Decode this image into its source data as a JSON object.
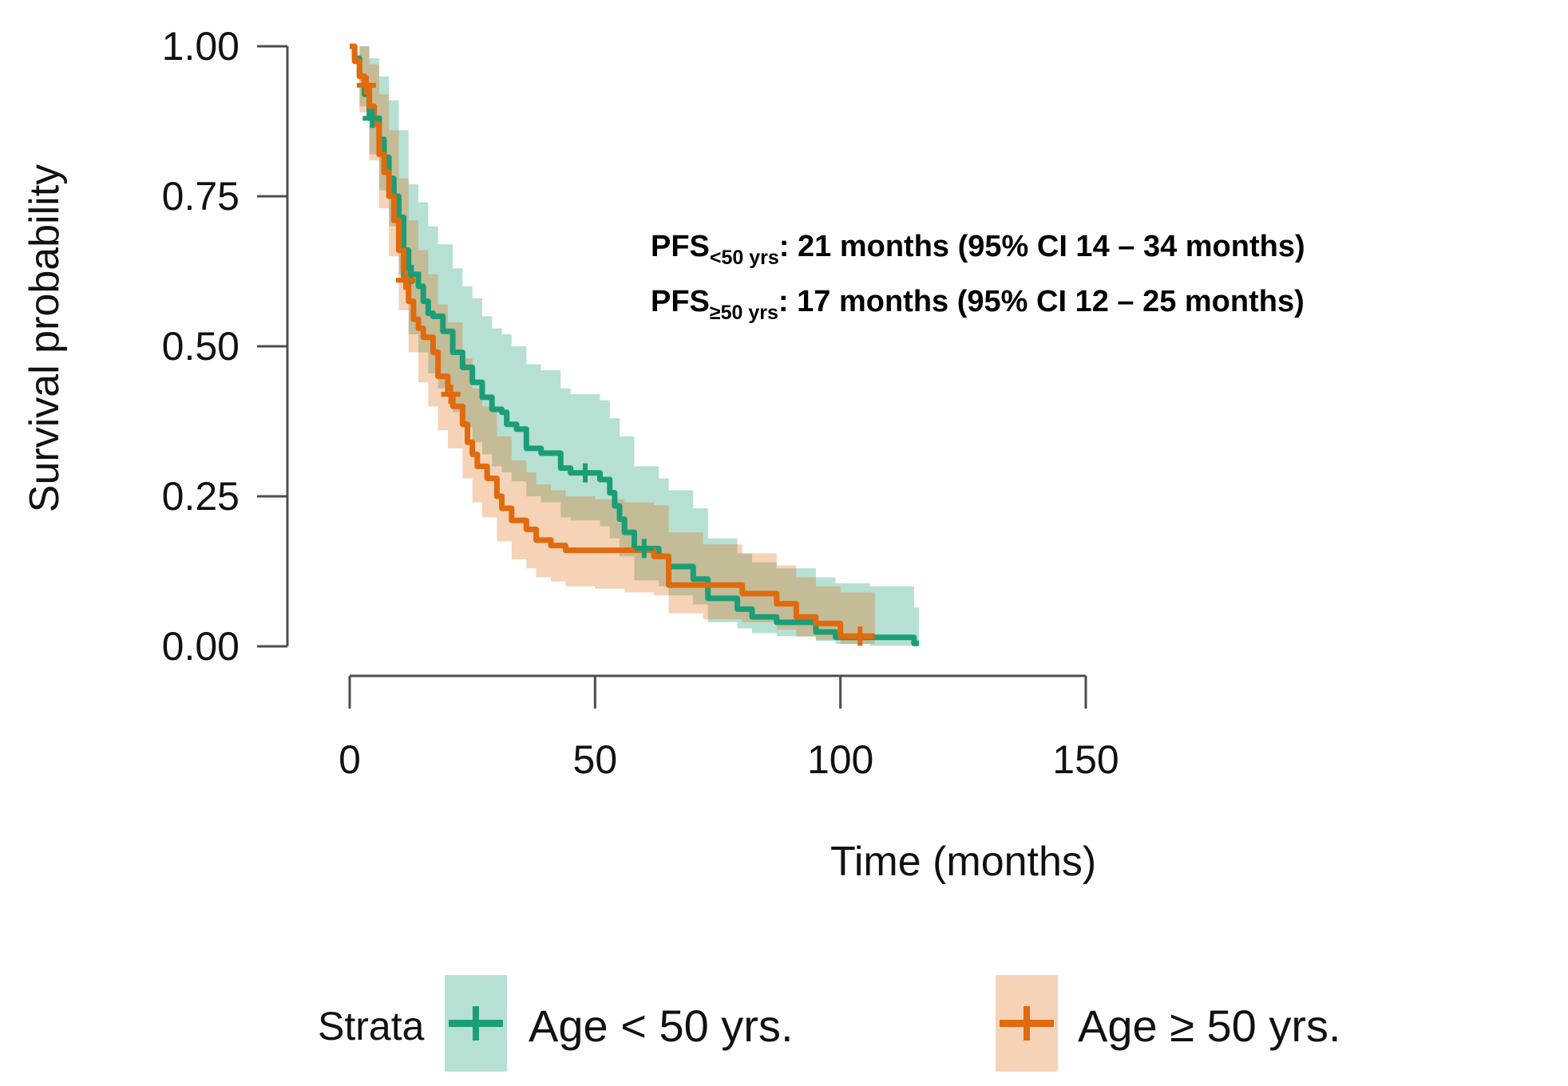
{
  "figure": {
    "background": "#ffffff",
    "axis_color": "#4d4d4d",
    "text_color": "#111111"
  },
  "chart_data": {
    "type": "line",
    "subtype": "kaplan-meier-step",
    "title": "",
    "xlabel": "Time (months)",
    "ylabel": "Survival probability",
    "xlim": [
      0,
      150
    ],
    "ylim": [
      0,
      1
    ],
    "grid": false,
    "legend_position": "bottom",
    "x_axis": {
      "label": "Time (months)",
      "ticks": [
        {
          "label": "0",
          "value": 0
        },
        {
          "label": "50",
          "value": 50
        },
        {
          "label": "100",
          "value": 100
        },
        {
          "label": "150",
          "value": 150
        }
      ]
    },
    "y_axis": {
      "label": "Survival probability",
      "ticks": [
        {
          "label": "1.00",
          "value": 1.0
        },
        {
          "label": "0.75",
          "value": 0.75
        },
        {
          "label": "0.50",
          "value": 0.5
        },
        {
          "label": "0.25",
          "value": 0.25
        },
        {
          "label": "0.00",
          "value": 0.0
        }
      ]
    },
    "annotation": {
      "lines": [
        {
          "prefix": "PFS",
          "sub": "<50 yrs",
          "rest": ": 21 months (95% CI 14 – 34 months)"
        },
        {
          "prefix": "PFS",
          "sub": "≥50 yrs",
          "rest": ": 17 months (95% CI 12 – 25 months)"
        }
      ]
    },
    "legend": {
      "title": "Strata",
      "entries": [
        {
          "label": "Age < 50 yrs."
        },
        {
          "label": "Age ≥ 50 yrs."
        }
      ]
    },
    "series": [
      {
        "name": "Age < 50 yrs.",
        "color": "#1b9e77",
        "band_color": "rgba(27,158,119,0.32)",
        "median_months": 21,
        "ci95_months": [
          14,
          34
        ],
        "start": [
          0,
          1.0
        ],
        "end_time": 116,
        "drops": [
          [
            1,
            0.98
          ],
          [
            2,
            0.95
          ],
          [
            3,
            0.92
          ],
          [
            4,
            0.88
          ],
          [
            6,
            0.845
          ],
          [
            7,
            0.815
          ],
          [
            8,
            0.78
          ],
          [
            9,
            0.75
          ],
          [
            10,
            0.715
          ],
          [
            11,
            0.66
          ],
          [
            12,
            0.62
          ],
          [
            14,
            0.6
          ],
          [
            15,
            0.575
          ],
          [
            16,
            0.555
          ],
          [
            17,
            0.55
          ],
          [
            19,
            0.525
          ],
          [
            21,
            0.49
          ],
          [
            23,
            0.465
          ],
          [
            25,
            0.44
          ],
          [
            27,
            0.415
          ],
          [
            29,
            0.395
          ],
          [
            31,
            0.39
          ],
          [
            32,
            0.37
          ],
          [
            34,
            0.362
          ],
          [
            36,
            0.33
          ],
          [
            39,
            0.322
          ],
          [
            43,
            0.297
          ],
          [
            45,
            0.289
          ],
          [
            51,
            0.278
          ],
          [
            53,
            0.256
          ],
          [
            54,
            0.234
          ],
          [
            55,
            0.212
          ],
          [
            56,
            0.19
          ],
          [
            58,
            0.163
          ],
          [
            63,
            0.15
          ],
          [
            65,
            0.133
          ],
          [
            70,
            0.112
          ],
          [
            73,
            0.08
          ],
          [
            79,
            0.062
          ],
          [
            82,
            0.049
          ],
          [
            87,
            0.04
          ],
          [
            95,
            0.024
          ],
          [
            99,
            0.015
          ],
          [
            115,
            0.005
          ]
        ],
        "censors": [
          [
            4.6,
            0.88
          ],
          [
            12.6,
            0.62
          ],
          [
            48,
            0.289
          ],
          [
            60,
            0.163
          ]
        ],
        "band_end_time": 116,
        "band": [
          [
            0,
            1,
            1
          ],
          [
            2,
            0.9,
            1
          ],
          [
            4,
            0.82,
            0.98
          ],
          [
            6,
            0.76,
            0.95
          ],
          [
            8,
            0.7,
            0.91
          ],
          [
            10,
            0.62,
            0.86
          ],
          [
            12,
            0.52,
            0.77
          ],
          [
            14,
            0.49,
            0.74
          ],
          [
            16,
            0.455,
            0.7
          ],
          [
            18,
            0.43,
            0.67
          ],
          [
            21,
            0.39,
            0.63
          ],
          [
            23,
            0.365,
            0.6
          ],
          [
            25,
            0.34,
            0.58
          ],
          [
            27,
            0.32,
            0.55
          ],
          [
            29,
            0.3,
            0.53
          ],
          [
            31,
            0.29,
            0.52
          ],
          [
            33,
            0.275,
            0.5
          ],
          [
            36,
            0.25,
            0.47
          ],
          [
            39,
            0.24,
            0.46
          ],
          [
            43,
            0.215,
            0.43
          ],
          [
            45,
            0.21,
            0.42
          ],
          [
            51,
            0.2,
            0.41
          ],
          [
            53,
            0.18,
            0.38
          ],
          [
            55,
            0.15,
            0.35
          ],
          [
            58,
            0.11,
            0.3
          ],
          [
            63,
            0.1,
            0.28
          ],
          [
            65,
            0.085,
            0.26
          ],
          [
            70,
            0.07,
            0.23
          ],
          [
            73,
            0.04,
            0.18
          ],
          [
            79,
            0.03,
            0.155
          ],
          [
            82,
            0.022,
            0.14
          ],
          [
            87,
            0.017,
            0.13
          ],
          [
            95,
            0.009,
            0.115
          ],
          [
            99,
            0.004,
            0.105
          ],
          [
            106,
            0.001,
            0.1
          ],
          [
            115,
            0,
            0.065
          ]
        ]
      },
      {
        "name": "Age ≥ 50 yrs.",
        "color": "#e06a0d",
        "band_color": "rgba(224,106,13,0.30)",
        "median_months": 17,
        "ci95_months": [
          12,
          25
        ],
        "start": [
          0,
          1.0
        ],
        "end_time": 107,
        "drops": [
          [
            1,
            0.975
          ],
          [
            2,
            0.95
          ],
          [
            3,
            0.935
          ],
          [
            4,
            0.9
          ],
          [
            5,
            0.87
          ],
          [
            6,
            0.82
          ],
          [
            7,
            0.79
          ],
          [
            8,
            0.75
          ],
          [
            9,
            0.71
          ],
          [
            10,
            0.66
          ],
          [
            11,
            0.61
          ],
          [
            12,
            0.575
          ],
          [
            13,
            0.545
          ],
          [
            14,
            0.53
          ],
          [
            15,
            0.515
          ],
          [
            17,
            0.49
          ],
          [
            18,
            0.45
          ],
          [
            20,
            0.42
          ],
          [
            21,
            0.4
          ],
          [
            23,
            0.37
          ],
          [
            24,
            0.34
          ],
          [
            25,
            0.32
          ],
          [
            26,
            0.3
          ],
          [
            28,
            0.28
          ],
          [
            30,
            0.25
          ],
          [
            31,
            0.23
          ],
          [
            33,
            0.21
          ],
          [
            36,
            0.195
          ],
          [
            38,
            0.177
          ],
          [
            41,
            0.168
          ],
          [
            44,
            0.16
          ],
          [
            62,
            0.15
          ],
          [
            65,
            0.102
          ],
          [
            80,
            0.088
          ],
          [
            87,
            0.071
          ],
          [
            91,
            0.049
          ],
          [
            95,
            0.038
          ],
          [
            100,
            0.017
          ]
        ],
        "censors": [
          [
            3.4,
            0.935
          ],
          [
            11.4,
            0.61
          ],
          [
            20.6,
            0.42
          ],
          [
            104,
            0.017
          ]
        ],
        "band_end_time": 107,
        "band": [
          [
            0,
            1,
            1
          ],
          [
            2,
            0.89,
            1
          ],
          [
            4,
            0.81,
            0.97
          ],
          [
            6,
            0.73,
            0.92
          ],
          [
            8,
            0.65,
            0.86
          ],
          [
            10,
            0.56,
            0.78
          ],
          [
            12,
            0.49,
            0.71
          ],
          [
            14,
            0.44,
            0.66
          ],
          [
            16,
            0.4,
            0.62
          ],
          [
            18,
            0.36,
            0.57
          ],
          [
            20,
            0.33,
            0.54
          ],
          [
            23,
            0.28,
            0.48
          ],
          [
            25,
            0.24,
            0.43
          ],
          [
            27,
            0.215,
            0.4
          ],
          [
            30,
            0.175,
            0.35
          ],
          [
            33,
            0.145,
            0.31
          ],
          [
            36,
            0.13,
            0.29
          ],
          [
            38,
            0.115,
            0.27
          ],
          [
            41,
            0.108,
            0.26
          ],
          [
            44,
            0.1,
            0.25
          ],
          [
            50,
            0.096,
            0.245
          ],
          [
            56,
            0.09,
            0.24
          ],
          [
            62,
            0.085,
            0.235
          ],
          [
            65,
            0.055,
            0.19
          ],
          [
            72,
            0.045,
            0.17
          ],
          [
            80,
            0.04,
            0.155
          ],
          [
            87,
            0.028,
            0.135
          ],
          [
            91,
            0.016,
            0.115
          ],
          [
            95,
            0.011,
            0.1
          ],
          [
            100,
            0.004,
            0.09
          ],
          [
            107,
            0,
            0.075
          ]
        ]
      }
    ]
  }
}
